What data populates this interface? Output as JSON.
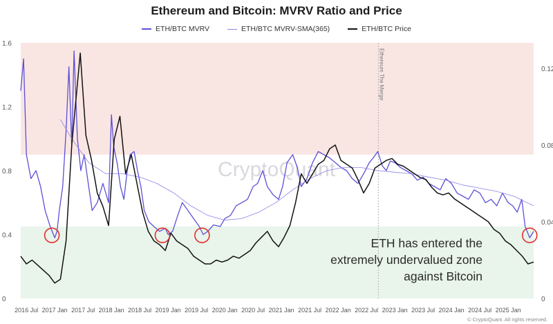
{
  "chart_data": {
    "type": "line",
    "title": "Ethereum and Bitcoin: MVRV Ratio and Price",
    "legend": [
      {
        "name": "ETH/BTC MVRV",
        "color": "#5b4fd6",
        "style": "solid"
      },
      {
        "name": "ETH/BTC MVRV-SMA(365)",
        "color": "#8a82e6",
        "style": "thin"
      },
      {
        "name": "ETH/BTC Price",
        "color": "#111111",
        "style": "solid"
      }
    ],
    "legend_position": "top-center",
    "x_ticks": [
      "2016 Jul",
      "2017 Jan",
      "2017 Jul",
      "2018 Jan",
      "2018 Jul",
      "2019 Jan",
      "2019 Jul",
      "2020 Jan",
      "2020 Jul",
      "2021 Jan",
      "2021 Jul",
      "2022 Jan",
      "2022 Jul",
      "2023 Jan",
      "2023 Jul",
      "2024 Jan",
      "2024 Jul",
      "2025 Jan"
    ],
    "x_range": [
      2016.4,
      2025.45
    ],
    "y_left": {
      "ticks": [
        "0",
        "0.4",
        "0.8",
        "1.2",
        "1.6"
      ],
      "range": [
        0,
        1.6
      ]
    },
    "y_right": {
      "ticks": [
        "0",
        "0.04",
        "0.08",
        "0.12"
      ],
      "range": [
        0,
        0.1333
      ]
    },
    "zones": [
      {
        "from": 0.9,
        "to": 1.6,
        "color": "#f9e6e3"
      },
      {
        "from": 0.0,
        "to": 0.45,
        "color": "#e9f4ea"
      }
    ],
    "event_line": {
      "x": 2022.71,
      "label": "Ethereum The Merge"
    },
    "watermark": "CryptoQuant",
    "series": [
      {
        "name": "ETH/BTC MVRV",
        "axis": "left",
        "x": [
          2016.4,
          2016.45,
          2016.5,
          2016.58,
          2016.67,
          2016.75,
          2016.83,
          2016.92,
          2017.0,
          2017.04,
          2017.08,
          2017.14,
          2017.2,
          2017.25,
          2017.3,
          2017.34,
          2017.4,
          2017.46,
          2017.52,
          2017.58,
          2017.66,
          2017.75,
          2017.85,
          2017.95,
          2018.0,
          2018.04,
          2018.1,
          2018.16,
          2018.22,
          2018.28,
          2018.33,
          2018.4,
          2018.46,
          2018.52,
          2018.58,
          2018.66,
          2018.75,
          2018.85,
          2018.95,
          2019.0,
          2019.08,
          2019.17,
          2019.25,
          2019.35,
          2019.45,
          2019.55,
          2019.62,
          2019.7,
          2019.8,
          2019.92,
          2020.0,
          2020.1,
          2020.2,
          2020.3,
          2020.4,
          2020.5,
          2020.58,
          2020.67,
          2020.75,
          2020.85,
          2020.95,
          2021.02,
          2021.1,
          2021.2,
          2021.28,
          2021.35,
          2021.45,
          2021.55,
          2021.65,
          2021.75,
          2021.85,
          2021.95,
          2022.05,
          2022.15,
          2022.25,
          2022.35,
          2022.45,
          2022.55,
          2022.62,
          2022.7,
          2022.78,
          2022.85,
          2022.92,
          2023.0,
          2023.1,
          2023.2,
          2023.3,
          2023.4,
          2023.5,
          2023.6,
          2023.7,
          2023.8,
          2023.9,
          2024.0,
          2024.1,
          2024.2,
          2024.3,
          2024.4,
          2024.5,
          2024.6,
          2024.7,
          2024.8,
          2024.9,
          2025.0,
          2025.08,
          2025.16,
          2025.24,
          2025.3,
          2025.38,
          2025.45
        ],
        "y": [
          1.3,
          1.5,
          0.9,
          0.75,
          0.8,
          0.7,
          0.55,
          0.45,
          0.38,
          0.42,
          0.55,
          0.7,
          1.05,
          1.45,
          0.95,
          1.55,
          1.0,
          0.8,
          0.9,
          0.75,
          0.55,
          0.6,
          0.72,
          0.6,
          1.15,
          0.95,
          0.85,
          0.7,
          0.62,
          0.8,
          0.9,
          0.92,
          0.8,
          0.7,
          0.55,
          0.48,
          0.45,
          0.42,
          0.44,
          0.4,
          0.42,
          0.52,
          0.6,
          0.55,
          0.5,
          0.45,
          0.4,
          0.42,
          0.46,
          0.45,
          0.5,
          0.52,
          0.58,
          0.6,
          0.62,
          0.7,
          0.72,
          0.8,
          0.7,
          0.65,
          0.62,
          0.7,
          0.85,
          0.9,
          0.82,
          0.7,
          0.75,
          0.85,
          0.92,
          0.9,
          0.88,
          0.85,
          0.82,
          0.8,
          0.75,
          0.72,
          0.78,
          0.85,
          0.88,
          0.92,
          0.83,
          0.8,
          0.86,
          0.85,
          0.82,
          0.8,
          0.78,
          0.74,
          0.76,
          0.72,
          0.7,
          0.68,
          0.75,
          0.72,
          0.66,
          0.64,
          0.62,
          0.68,
          0.66,
          0.6,
          0.62,
          0.58,
          0.66,
          0.6,
          0.58,
          0.54,
          0.62,
          0.45,
          0.38,
          0.42
        ]
      },
      {
        "name": "ETH/BTC MVRV-SMA(365)",
        "axis": "left",
        "x": [
          2017.1,
          2017.3,
          2017.6,
          2017.9,
          2018.2,
          2018.5,
          2018.8,
          2019.1,
          2019.4,
          2019.7,
          2020.0,
          2020.3,
          2020.6,
          2020.9,
          2021.2,
          2021.5,
          2021.8,
          2022.1,
          2022.4,
          2022.7,
          2023.0,
          2023.3,
          2023.6,
          2023.9,
          2024.2,
          2024.5,
          2024.8,
          2025.1,
          2025.45
        ],
        "y": [
          1.12,
          1.0,
          0.85,
          0.78,
          0.78,
          0.76,
          0.72,
          0.66,
          0.58,
          0.52,
          0.49,
          0.5,
          0.54,
          0.6,
          0.68,
          0.75,
          0.8,
          0.82,
          0.82,
          0.8,
          0.79,
          0.78,
          0.76,
          0.74,
          0.71,
          0.69,
          0.67,
          0.64,
          0.58
        ]
      },
      {
        "name": "ETH/BTC Price",
        "axis": "right",
        "x": [
          2016.4,
          2016.5,
          2016.6,
          2016.75,
          2016.9,
          2017.0,
          2017.1,
          2017.2,
          2017.3,
          2017.4,
          2017.45,
          2017.55,
          2017.65,
          2017.75,
          2017.85,
          2017.95,
          2018.05,
          2018.15,
          2018.25,
          2018.35,
          2018.45,
          2018.55,
          2018.65,
          2018.75,
          2018.85,
          2018.95,
          2019.05,
          2019.15,
          2019.25,
          2019.35,
          2019.45,
          2019.55,
          2019.65,
          2019.75,
          2019.85,
          2019.95,
          2020.05,
          2020.15,
          2020.25,
          2020.35,
          2020.45,
          2020.55,
          2020.65,
          2020.75,
          2020.85,
          2020.95,
          2021.05,
          2021.15,
          2021.25,
          2021.35,
          2021.45,
          2021.55,
          2021.65,
          2021.75,
          2021.85,
          2021.95,
          2022.05,
          2022.15,
          2022.25,
          2022.35,
          2022.45,
          2022.55,
          2022.65,
          2022.75,
          2022.85,
          2022.95,
          2023.05,
          2023.15,
          2023.25,
          2023.35,
          2023.45,
          2023.55,
          2023.65,
          2023.75,
          2023.85,
          2023.95,
          2024.05,
          2024.15,
          2024.25,
          2024.35,
          2024.45,
          2024.55,
          2024.65,
          2024.75,
          2024.85,
          2024.95,
          2025.05,
          2025.15,
          2025.25,
          2025.35,
          2025.45
        ],
        "y": [
          0.022,
          0.018,
          0.02,
          0.016,
          0.012,
          0.008,
          0.01,
          0.03,
          0.08,
          0.112,
          0.128,
          0.085,
          0.072,
          0.055,
          0.048,
          0.038,
          0.083,
          0.095,
          0.065,
          0.075,
          0.06,
          0.045,
          0.035,
          0.03,
          0.028,
          0.025,
          0.034,
          0.03,
          0.028,
          0.026,
          0.022,
          0.02,
          0.018,
          0.018,
          0.02,
          0.019,
          0.02,
          0.022,
          0.021,
          0.023,
          0.025,
          0.029,
          0.032,
          0.035,
          0.03,
          0.027,
          0.032,
          0.038,
          0.05,
          0.065,
          0.06,
          0.065,
          0.07,
          0.072,
          0.078,
          0.08,
          0.072,
          0.07,
          0.068,
          0.062,
          0.055,
          0.06,
          0.068,
          0.07,
          0.072,
          0.073,
          0.07,
          0.069,
          0.067,
          0.065,
          0.063,
          0.062,
          0.058,
          0.055,
          0.054,
          0.055,
          0.052,
          0.05,
          0.048,
          0.046,
          0.044,
          0.042,
          0.04,
          0.036,
          0.034,
          0.03,
          0.028,
          0.025,
          0.022,
          0.018,
          0.019
        ]
      }
    ],
    "highlight_circles": [
      {
        "x": 2016.95,
        "y": 0.395
      },
      {
        "x": 2018.9,
        "y": 0.395
      },
      {
        "x": 2019.6,
        "y": 0.395
      },
      {
        "x": 2025.38,
        "y": 0.395
      }
    ]
  },
  "annotation": {
    "line1": "ETH has entered the",
    "line2": "extremely undervalued zone",
    "line3": "against Bitcoin"
  },
  "footer": "© CryptoQuant. All rights reserved."
}
